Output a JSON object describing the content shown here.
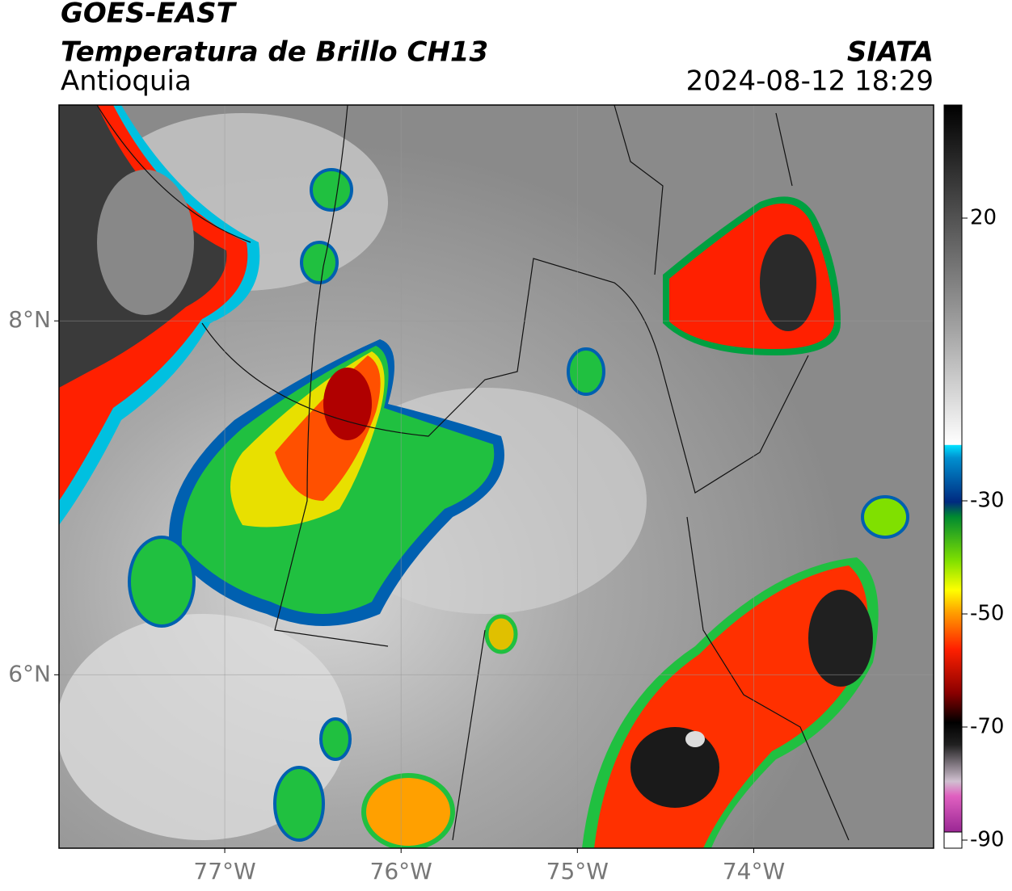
{
  "header": {
    "title": "GOES-EAST",
    "subtitle": "Temperatura de Brillo CH13",
    "region": "Antioquia",
    "source": "SIATA",
    "timestamp": "2024-08-12 18:29"
  },
  "map": {
    "xlim": [
      -77.94,
      -72.98
    ],
    "ylim": [
      5.02,
      9.22
    ],
    "xticks": [
      {
        "value": -77,
        "label": "77°W"
      },
      {
        "value": -76,
        "label": "76°W"
      },
      {
        "value": -75,
        "label": "75°W"
      },
      {
        "value": -74,
        "label": "74°W"
      }
    ],
    "yticks": [
      {
        "value": 8,
        "label": "8°N"
      },
      {
        "value": 6,
        "label": "6°N"
      }
    ],
    "grid": true
  },
  "colorbar": {
    "lim": [
      -90,
      40
    ],
    "ticks": [
      20,
      -30,
      -50,
      -70,
      -90
    ]
  }
}
